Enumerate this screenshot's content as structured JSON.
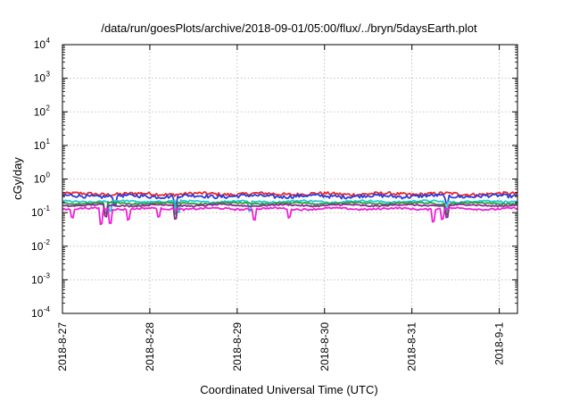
{
  "chart_data": {
    "type": "line",
    "title": "/data/run/goesPlots/archive/2018-09-01/05:00/flux/../bryn/5daysEarth.plot",
    "xlabel": "Coordinated Universal Time (UTC)",
    "ylabel": "cGy/day",
    "yscale": "log",
    "ylim": [
      0.0001,
      10000
    ],
    "y_ticks": [
      {
        "base": "10",
        "exp": "-4"
      },
      {
        "base": "10",
        "exp": "-3"
      },
      {
        "base": "10",
        "exp": "-2"
      },
      {
        "base": "10",
        "exp": "-1"
      },
      {
        "base": "10",
        "exp": "0"
      },
      {
        "base": "10",
        "exp": "1"
      },
      {
        "base": "10",
        "exp": "2"
      },
      {
        "base": "10",
        "exp": "3"
      },
      {
        "base": "10",
        "exp": "4"
      }
    ],
    "xlim": [
      "2018-08-27 00:00",
      "2018-09-01 05:00"
    ],
    "x_ticks": [
      "2018-8-27",
      "2018-8-28",
      "2018-8-29",
      "2018-8-30",
      "2018-8-31",
      "2018-9-1"
    ],
    "grid": true,
    "series": [
      {
        "color": "#e8282e",
        "level": 0.36,
        "jitter": 0.11,
        "dips": []
      },
      {
        "color": "#2a3bd8",
        "level": 0.31,
        "jitter": 0.12,
        "dips": [
          [
            0.6,
            0.55
          ],
          [
            1.3,
            0.5
          ],
          [
            4.4,
            0.55
          ]
        ]
      },
      {
        "color": "#22c9d6",
        "level": 0.215,
        "jitter": 0.06,
        "dips": [
          [
            0.55,
            0.5
          ],
          [
            1.32,
            0.45
          ],
          [
            2.15,
            0.5
          ],
          [
            4.38,
            0.5
          ]
        ]
      },
      {
        "color": "#2a9d3a",
        "level": 0.19,
        "jitter": 0.05,
        "dips": [
          [
            0.5,
            0.5
          ],
          [
            1.3,
            0.45
          ],
          [
            4.4,
            0.5
          ]
        ]
      },
      {
        "color": "#8a2a8f",
        "level": 0.165,
        "jitter": 0.05,
        "dips": [
          [
            0.5,
            0.45
          ],
          [
            1.3,
            0.4
          ],
          [
            4.4,
            0.45
          ]
        ]
      },
      {
        "color": "#f020d8",
        "level": 0.13,
        "jitter": 0.06,
        "dips": [
          [
            0.12,
            0.55
          ],
          [
            0.45,
            0.35
          ],
          [
            0.55,
            0.4
          ],
          [
            0.75,
            0.5
          ],
          [
            1.1,
            0.55
          ],
          [
            2.2,
            0.5
          ],
          [
            2.6,
            0.55
          ],
          [
            4.25,
            0.45
          ],
          [
            4.35,
            0.5
          ]
        ]
      }
    ]
  }
}
